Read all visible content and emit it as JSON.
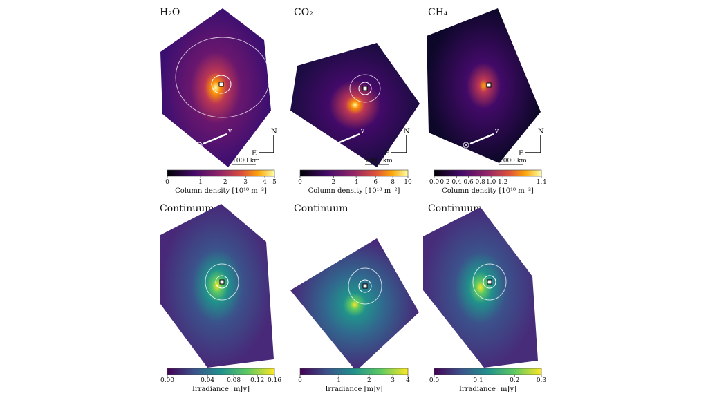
{
  "chart_data": [
    {
      "type": "heatmap",
      "title": "H₂O",
      "colormap": "inferno",
      "colorbar": {
        "label": "Column density [10¹⁸ m⁻²]",
        "ticks": [
          "0",
          "1",
          "2",
          "3",
          "4",
          "5"
        ],
        "range": [
          0,
          5
        ],
        "scale": "nonlinear"
      },
      "annotations": {
        "velocity": "v",
        "north": "N",
        "east": "E",
        "scale_bar": "1000 km"
      },
      "contours": 2
    },
    {
      "type": "heatmap",
      "title": "CO₂",
      "colormap": "inferno",
      "colorbar": {
        "label": "Column density [10¹⁸ m⁻²]",
        "ticks": [
          "0",
          "2",
          "4",
          "6",
          "8",
          "10"
        ],
        "range": [
          0,
          10
        ],
        "scale": "nonlinear"
      },
      "annotations": {
        "velocity": "v",
        "north": "N",
        "east": "E",
        "scale_bar": "1000 km"
      },
      "contours": 2
    },
    {
      "type": "heatmap",
      "title": "CH₄",
      "colormap": "inferno",
      "colorbar": {
        "label": "Column density [10¹⁸ m⁻²]",
        "ticks": [
          "0.0",
          "0.2",
          "0.4",
          "0.6",
          "0.8",
          "1.0",
          "1.2",
          "1.4"
        ],
        "range": [
          0,
          1.4
        ],
        "scale": "linear"
      },
      "annotations": {
        "velocity": "v",
        "north": "N",
        "east": "E",
        "scale_bar": "1000 km"
      },
      "contours": 0
    },
    {
      "type": "heatmap",
      "title": "Continuum",
      "colormap": "viridis",
      "colorbar": {
        "label": "Irradiance [mJy]",
        "ticks": [
          "0.00",
          "0.04",
          "0.08",
          "0.12",
          "0.16"
        ],
        "range": [
          0,
          0.16
        ],
        "scale": "nonlinear"
      },
      "contours": 2
    },
    {
      "type": "heatmap",
      "title": "Continuum",
      "colormap": "viridis",
      "colorbar": {
        "label": "Irradiance [mJy]",
        "ticks": [
          "0",
          "1",
          "2",
          "3",
          "4"
        ],
        "range": [
          0,
          4
        ],
        "scale": "nonlinear"
      },
      "contours": 2
    },
    {
      "type": "heatmap",
      "title": "Continuum",
      "colormap": "viridis",
      "colorbar": {
        "label": "Irradiance [mJy]",
        "ticks": [
          "0.0",
          "0.1",
          "0.2",
          "0.3"
        ],
        "range": [
          0,
          0.3
        ],
        "scale": "nonlinear"
      },
      "contours": 2
    }
  ]
}
